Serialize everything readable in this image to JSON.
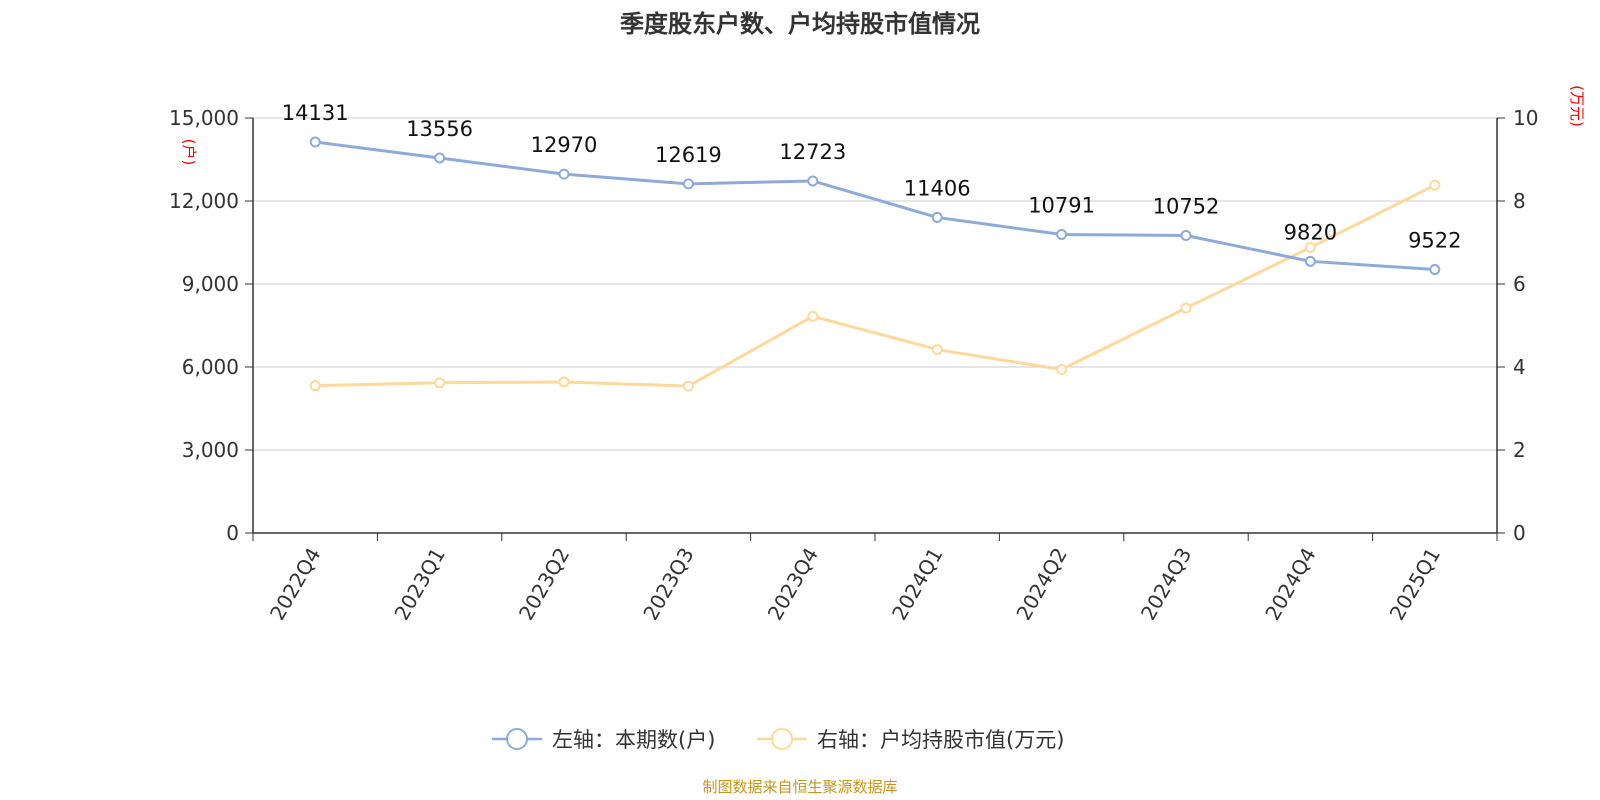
{
  "chart_data": {
    "type": "line",
    "title": "季度股东户数、户均持股市值情况",
    "categories": [
      "2022Q4",
      "2023Q1",
      "2023Q2",
      "2023Q3",
      "2023Q4",
      "2024Q1",
      "2024Q2",
      "2024Q3",
      "2024Q4",
      "2025Q1"
    ],
    "left_axis": {
      "unit": "(户)",
      "range": [
        0,
        15000
      ],
      "ticks": [
        "0",
        "3,000",
        "6,000",
        "9,000",
        "12,000",
        "15,000"
      ]
    },
    "right_axis": {
      "unit": "(万元)",
      "range": [
        0,
        10
      ],
      "ticks": [
        "0",
        "2",
        "4",
        "6",
        "8",
        "10"
      ]
    },
    "grid": true,
    "legend_position": "bottom-center",
    "series": [
      {
        "name": "左轴：本期数(户)",
        "axis": "left",
        "color": "#8eaadb",
        "values": [
          14131,
          13556,
          12970,
          12619,
          12723,
          11406,
          10791,
          10752,
          9820,
          9522
        ],
        "labels": [
          "14131",
          "13556",
          "12970",
          "12619",
          "12723",
          "11406",
          "10791",
          "10752",
          "9820",
          "9522"
        ]
      },
      {
        "name": "右轴：户均持股市值(万元)",
        "axis": "right",
        "color": "#fdd99b",
        "values": [
          3.55,
          3.62,
          3.64,
          3.54,
          5.22,
          4.42,
          3.94,
          5.42,
          6.88,
          8.38
        ]
      }
    ]
  },
  "source": "制图数据来自恒生聚源数据库"
}
